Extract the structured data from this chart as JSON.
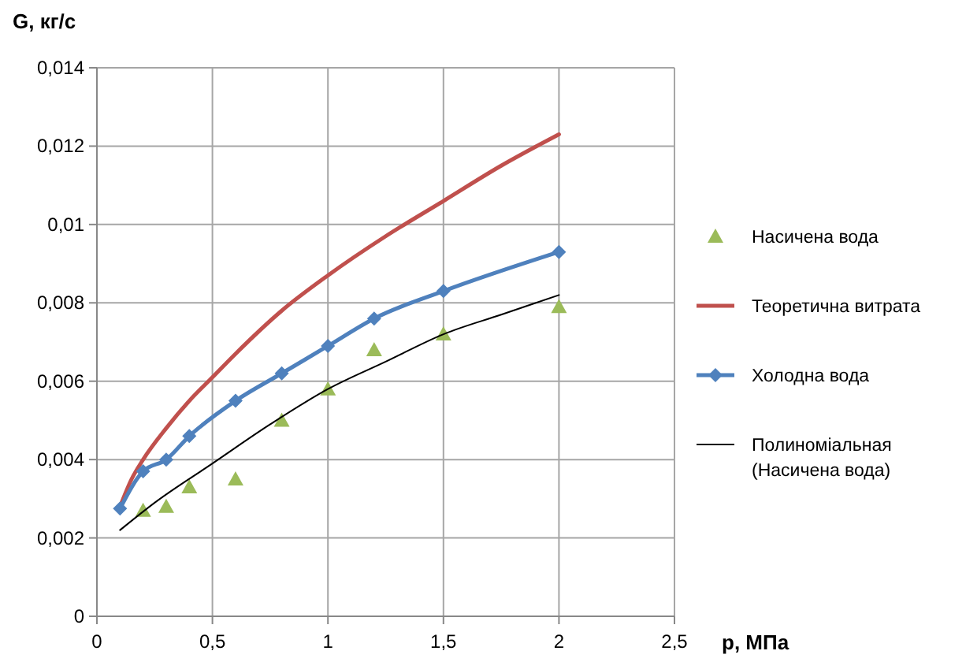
{
  "chart_data": {
    "type": "line",
    "xlabel": "p, МПа",
    "ylabel": "G, кг/с",
    "xlim": [
      0,
      2.5
    ],
    "xticks": [
      0,
      {
        "value": 0.5,
        "label": "0,5"
      },
      1,
      {
        "value": 1.5,
        "label": "1,5"
      },
      2,
      {
        "value": 2.5,
        "label": "2,5"
      }
    ],
    "ylim": [
      0,
      0.014
    ],
    "yticks": [
      0,
      {
        "value": 0.002,
        "label": "0,002"
      },
      {
        "value": 0.004,
        "label": "0,004"
      },
      {
        "value": 0.006,
        "label": "0,006"
      },
      {
        "value": 0.008,
        "label": "0,008"
      },
      {
        "value": 0.01,
        "label": "0,01"
      },
      {
        "value": 0.012,
        "label": "0,012"
      },
      {
        "value": 0.014,
        "label": "0,014"
      }
    ],
    "grid": true,
    "legend": "right",
    "series": [
      {
        "name": "Насичена вода",
        "type": "scatter",
        "marker": "triangle",
        "color": "#9bbb59",
        "x": [
          0.2,
          0.3,
          0.4,
          0.6,
          0.8,
          1,
          1.2,
          1.5,
          2
        ],
        "values": [
          0.0027,
          0.0028,
          0.0033,
          0.0035,
          0.005,
          0.0058,
          0.0068,
          0.0072,
          0.0079
        ]
      },
      {
        "name": "Теоретична витрата",
        "marker": "none",
        "color": "#c0504d",
        "x": [
          0.1,
          0.15,
          0.2,
          0.3,
          0.4,
          0.5,
          0.6,
          0.8,
          1,
          1.25,
          1.5,
          1.75,
          2
        ],
        "values": [
          0.0028,
          0.0035,
          0.004,
          0.0048,
          0.0055,
          0.0061,
          0.0067,
          0.0078,
          0.0087,
          0.0097,
          0.0106,
          0.0115,
          0.0123
        ]
      },
      {
        "name": "Холодна вода",
        "marker": "diamond",
        "color": "#4f81bd",
        "x": [
          0.1,
          0.2,
          0.3,
          0.4,
          0.6,
          0.8,
          1,
          1.2,
          1.5,
          2
        ],
        "values": [
          0.00275,
          0.0037,
          0.004,
          0.0046,
          0.0055,
          0.0062,
          0.0069,
          0.0076,
          0.0083,
          0.0093
        ]
      },
      {
        "name": "Полиноміальная (Насичена вода)",
        "type": "line",
        "marker": "none",
        "color": "#000000",
        "x": [
          0.1,
          0.25,
          0.5,
          0.75,
          1,
          1.25,
          1.5,
          1.75,
          2
        ],
        "values": [
          0.0022,
          0.0029,
          0.0039,
          0.0049,
          0.0058,
          0.0065,
          0.0072,
          0.0077,
          0.0082
        ]
      }
    ]
  }
}
